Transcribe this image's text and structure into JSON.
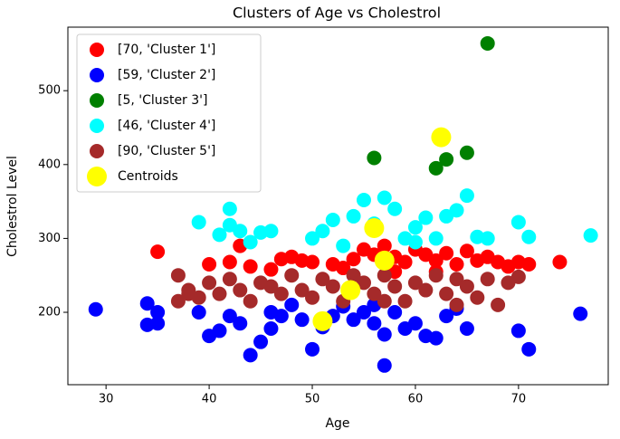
{
  "chart_data": {
    "type": "scatter",
    "title": "Clusters of Age vs Cholestrol",
    "x_label": "Age",
    "y_label": "Cholestrol Level",
    "xlim": [
      26.3,
      78.7
    ],
    "ylim": [
      102,
      586
    ],
    "xticks": [
      30,
      40,
      50,
      60,
      70
    ],
    "yticks": [
      200,
      300,
      400,
      500
    ],
    "legend": "upper left",
    "series": [
      {
        "name": "[70, 'Cluster 1']",
        "color": "#ff0000",
        "x": [
          35,
          43,
          40,
          42,
          44,
          46,
          47,
          48,
          49,
          50,
          52,
          54,
          55,
          56,
          57,
          58,
          59,
          60,
          61,
          62,
          63,
          64,
          65,
          66,
          67,
          68,
          69,
          70,
          71,
          74,
          58,
          62,
          53
        ],
        "values": [
          282,
          290,
          265,
          268,
          262,
          258,
          272,
          275,
          270,
          268,
          265,
          272,
          285,
          278,
          290,
          275,
          268,
          285,
          278,
          270,
          280,
          265,
          283,
          270,
          275,
          268,
          262,
          268,
          265,
          268,
          255,
          255,
          260
        ]
      },
      {
        "name": "[59, 'Cluster 2']",
        "color": "#0000ff",
        "x": [
          29,
          34,
          34,
          35,
          35,
          39,
          40,
          41,
          42,
          43,
          44,
          45,
          46,
          46,
          48,
          49,
          50,
          51,
          52,
          53,
          54,
          55,
          56,
          57,
          57,
          58,
          59,
          60,
          61,
          62,
          63,
          64,
          65,
          70,
          71,
          76,
          47,
          56
        ],
        "values": [
          204,
          212,
          183,
          185,
          200,
          200,
          168,
          175,
          195,
          185,
          142,
          160,
          178,
          200,
          210,
          190,
          150,
          180,
          195,
          208,
          190,
          200,
          185,
          170,
          128,
          200,
          178,
          185,
          168,
          165,
          195,
          205,
          178,
          175,
          150,
          198,
          195,
          210
        ]
      },
      {
        "name": "[5, 'Cluster 3']",
        "color": "#008000",
        "x": [
          56,
          62,
          63,
          65,
          67
        ],
        "values": [
          409,
          395,
          407,
          416,
          564
        ]
      },
      {
        "name": "[46, 'Cluster 4']",
        "color": "#00ffff",
        "x": [
          39,
          41,
          42,
          42,
          43,
          44,
          45,
          46,
          50,
          51,
          52,
          54,
          55,
          56,
          57,
          58,
          59,
          60,
          61,
          62,
          63,
          64,
          65,
          66,
          67,
          70,
          71,
          77,
          53,
          60
        ],
        "values": [
          322,
          305,
          318,
          340,
          310,
          295,
          308,
          310,
          300,
          310,
          325,
          330,
          352,
          320,
          355,
          340,
          300,
          315,
          328,
          300,
          330,
          338,
          358,
          302,
          300,
          322,
          302,
          304,
          290,
          295
        ]
      },
      {
        "name": "[90, 'Cluster 5']",
        "color": "#a52a2a",
        "x": [
          37,
          37,
          38,
          39,
          40,
          41,
          42,
          43,
          44,
          45,
          46,
          47,
          48,
          49,
          50,
          51,
          52,
          53,
          54,
          55,
          56,
          57,
          58,
          59,
          60,
          61,
          62,
          63,
          64,
          65,
          66,
          67,
          68,
          69,
          70,
          38,
          57,
          64
        ],
        "values": [
          215,
          250,
          230,
          220,
          240,
          225,
          245,
          230,
          215,
          240,
          235,
          225,
          250,
          230,
          220,
          245,
          235,
          215,
          250,
          240,
          225,
          250,
          235,
          215,
          240,
          230,
          250,
          225,
          245,
          235,
          220,
          245,
          210,
          240,
          248,
          225,
          215,
          210
        ]
      },
      {
        "name": "Centroids",
        "color": "#ffff00",
        "x": [
          62.5,
          56,
          57,
          53.7,
          51
        ],
        "values": [
          437,
          314,
          270,
          230,
          188
        ]
      }
    ]
  }
}
